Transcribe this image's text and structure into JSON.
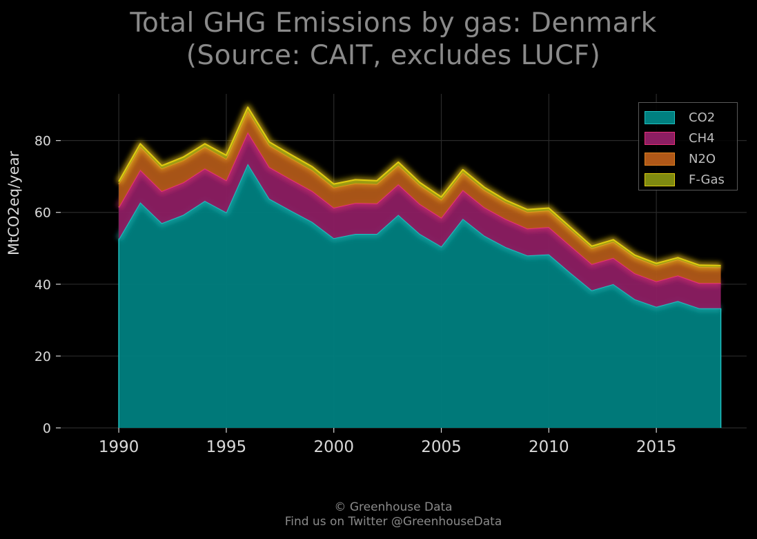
{
  "chart_data": {
    "type": "area",
    "stacked": true,
    "title_line1": "Total GHG Emissions by gas: Denmark",
    "title_line2": "(Source: CAIT, excludes LUCF)",
    "xlabel": "",
    "ylabel": "MtCO2eq/year",
    "xlim": [
      1987.3,
      2019.2
    ],
    "ylim": [
      0,
      93
    ],
    "x_ticks": [
      1990,
      1995,
      2000,
      2005,
      2010,
      2015
    ],
    "y_ticks": [
      0,
      20,
      40,
      60,
      80
    ],
    "grid": true,
    "legend_position": "top-right",
    "x": [
      1990,
      1991,
      1992,
      1993,
      1994,
      1995,
      1996,
      1997,
      1998,
      1999,
      2000,
      2001,
      2002,
      2003,
      2004,
      2005,
      2006,
      2007,
      2008,
      2009,
      2010,
      2011,
      2012,
      2013,
      2014,
      2015,
      2016,
      2017,
      2018
    ],
    "series": [
      {
        "name": "CO2",
        "fill": "#008080",
        "stroke": "#1fc2c2",
        "values": [
          52.5,
          62.8,
          57.0,
          59.3,
          63.2,
          60.0,
          73.5,
          63.8,
          60.5,
          57.3,
          52.8,
          54.0,
          54.0,
          59.3,
          54.0,
          50.5,
          58.2,
          53.5,
          50.3,
          48.0,
          48.3,
          43.2,
          38.3,
          40.0,
          35.8,
          33.7,
          35.3,
          33.3,
          33.3
        ]
      },
      {
        "name": "CH4",
        "fill": "#8c1e62",
        "stroke": "#e8307a",
        "values": [
          8.9,
          9.0,
          8.9,
          9.0,
          9.0,
          8.9,
          8.8,
          8.8,
          8.7,
          8.6,
          8.5,
          8.6,
          8.5,
          8.5,
          8.3,
          8.0,
          8.0,
          7.9,
          7.8,
          7.5,
          7.6,
          7.5,
          7.3,
          7.3,
          7.2,
          7.1,
          7.1,
          7.0,
          7.0
        ]
      },
      {
        "name": "N2O",
        "fill": "#b05818",
        "stroke": "#e08320",
        "values": [
          6.5,
          6.5,
          6.3,
          6.2,
          6.0,
          6.0,
          6.0,
          6.0,
          5.9,
          5.8,
          5.6,
          5.5,
          5.4,
          5.3,
          5.2,
          5.0,
          4.9,
          4.8,
          4.6,
          4.6,
          4.6,
          4.5,
          4.4,
          4.5,
          4.5,
          4.4,
          4.5,
          4.5,
          4.4
        ]
      },
      {
        "name": "F-Gas",
        "fill": "#7f8a10",
        "stroke": "#e0cc10",
        "values": [
          0.7,
          0.8,
          0.8,
          0.9,
          0.9,
          1.0,
          1.0,
          1.0,
          1.0,
          1.0,
          1.0,
          1.0,
          0.9,
          0.9,
          0.8,
          0.8,
          0.8,
          0.8,
          0.7,
          0.7,
          0.7,
          0.7,
          0.6,
          0.6,
          0.6,
          0.6,
          0.5,
          0.5,
          0.5
        ]
      }
    ]
  },
  "footer": {
    "line1": "© Greenhouse Data",
    "line2": "Find us on Twitter @GreenhouseData"
  },
  "colors": {
    "background": "#000000",
    "grid": "#2a2a2a",
    "tick_text": "#d9d9d9",
    "title_text": "#8a8a8a"
  }
}
